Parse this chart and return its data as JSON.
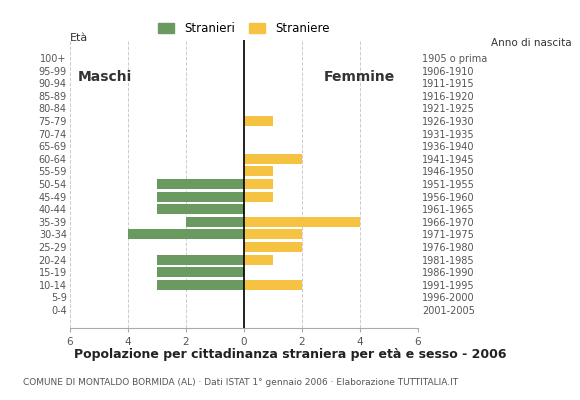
{
  "age_groups": [
    "100+",
    "95-99",
    "90-94",
    "85-89",
    "80-84",
    "75-79",
    "70-74",
    "65-69",
    "60-64",
    "55-59",
    "50-54",
    "45-49",
    "40-44",
    "35-39",
    "30-34",
    "25-29",
    "20-24",
    "15-19",
    "10-14",
    "5-9",
    "0-4"
  ],
  "birth_years": [
    "1905 o prima",
    "1906-1910",
    "1911-1915",
    "1916-1920",
    "1921-1925",
    "1926-1930",
    "1931-1935",
    "1936-1940",
    "1941-1945",
    "1946-1950",
    "1951-1955",
    "1956-1960",
    "1961-1965",
    "1966-1970",
    "1971-1975",
    "1976-1980",
    "1981-1985",
    "1986-1990",
    "1991-1995",
    "1996-2000",
    "2001-2005"
  ],
  "males": [
    0,
    0,
    0,
    0,
    0,
    0,
    0,
    0,
    0,
    0,
    3,
    3,
    3,
    2,
    4,
    0,
    3,
    3,
    3,
    0,
    0
  ],
  "females": [
    0,
    0,
    0,
    0,
    0,
    1,
    0,
    0,
    2,
    1,
    1,
    1,
    0,
    4,
    2,
    2,
    1,
    0,
    2,
    0,
    0
  ],
  "male_color": "#6a9a5f",
  "female_color": "#f5c242",
  "title": "Popolazione per cittadinanza straniera per età e sesso - 2006",
  "subtitle": "COMUNE DI MONTALDO BORMIDA (AL) · Dati ISTAT 1° gennaio 2006 · Elaborazione TUTTITALIA.IT",
  "legend_male": "Stranieri",
  "legend_female": "Straniere",
  "xlim": 6,
  "bar_height": 0.78,
  "background_color": "#ffffff",
  "grid_color": "#cccccc",
  "maschi_label": "Maschi",
  "femmine_label": "Femmine",
  "eta_label": "Età",
  "anno_label": "Anno di nascita"
}
